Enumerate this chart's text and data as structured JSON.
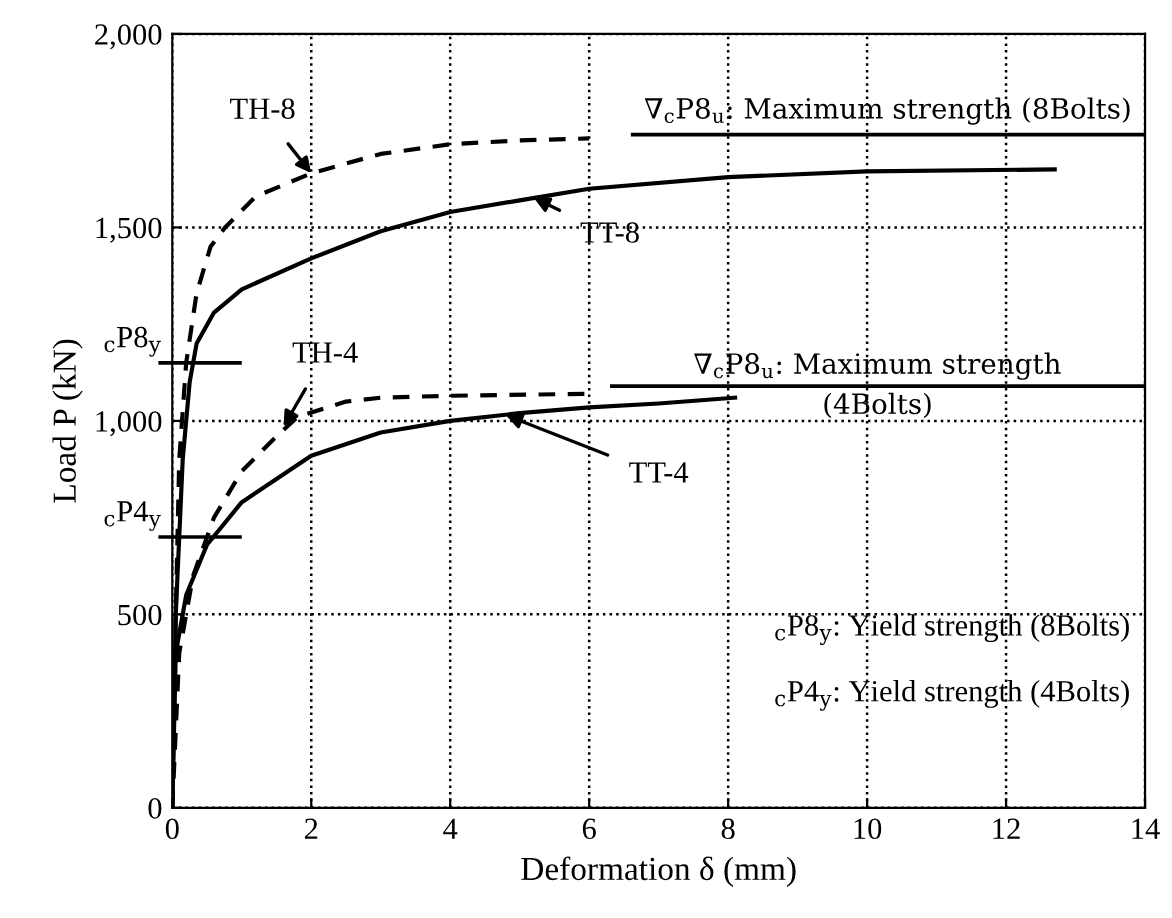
{
  "chart_data": {
    "type": "line",
    "xlabel": "Deformation δ (mm)",
    "ylabel": "Load P (kN)",
    "xlim": [
      0,
      14
    ],
    "xticks": [
      0,
      2,
      4,
      6,
      8,
      10,
      12,
      14
    ],
    "ylim": [
      0,
      2000
    ],
    "yticks": [
      0,
      500,
      {
        "value": 1000,
        "label": "1,000"
      },
      {
        "value": 1500,
        "label": "1,500"
      },
      {
        "value": 2000,
        "label": "2,000"
      }
    ],
    "grid": true,
    "legend": false,
    "marker": "none",
    "series": [
      {
        "name": "TH-8",
        "color": "#000000",
        "line_style": "dashed",
        "x": [
          0,
          0.05,
          0.1,
          0.2,
          0.35,
          0.55,
          0.76,
          1.2,
          2,
          3,
          4,
          5,
          6
        ],
        "values": [
          0,
          500,
          900,
          1150,
          1330,
          1450,
          1500,
          1580,
          1640,
          1690,
          1715,
          1725,
          1730
        ]
      },
      {
        "name": "TT-8",
        "color": "#000000",
        "line_style": "solid",
        "x": [
          0,
          0.05,
          0.15,
          0.25,
          0.35,
          0.6,
          1,
          2,
          3,
          4,
          5,
          6,
          8,
          10,
          12.7
        ],
        "values": [
          0,
          500,
          900,
          1100,
          1200,
          1280,
          1340,
          1420,
          1490,
          1540,
          1570,
          1600,
          1630,
          1645,
          1650
        ]
      },
      {
        "name": "TH-4",
        "color": "#000000",
        "line_style": "dashed",
        "x": [
          0,
          0.1,
          0.3,
          0.6,
          1,
          1.5,
          1.8,
          2.5,
          3,
          4,
          6
        ],
        "values": [
          0,
          400,
          600,
          750,
          870,
          960,
          1010,
          1050,
          1060,
          1065,
          1070
        ]
      },
      {
        "name": "TT-4",
        "color": "#000000",
        "line_style": "solid",
        "x": [
          0,
          0.05,
          0.2,
          0.5,
          1,
          2,
          3,
          4,
          5,
          6,
          7,
          8.1
        ],
        "values": [
          0,
          400,
          550,
          680,
          790,
          910,
          970,
          1000,
          1020,
          1035,
          1045,
          1060
        ]
      }
    ],
    "ref_lines": [
      {
        "axis": "y",
        "value": 1150,
        "label": "$_{c}$P8$_{y}$",
        "color": "#000000"
      },
      {
        "axis": "y",
        "value": 700,
        "label": "$_{c}$P4$_{y}$",
        "color": "#000000"
      },
      {
        "axis": "y",
        "value": 1740,
        "label": "∇$_{c}$P8$_{u}$: Maximum strength (8Bolts)",
        "color": "#000000"
      },
      {
        "axis": "y",
        "value": 1090,
        "label": "∇$_{c}$P8$_{u}$: Maximum strength\n(4Bolts)",
        "color": "#000000"
      }
    ],
    "annotations": [
      "$_{c}$P8$_{y}$: Yield strength (8Bolts)",
      "$_{c}$P4$_{y}$: Yield strength (4Bolts)"
    ]
  }
}
